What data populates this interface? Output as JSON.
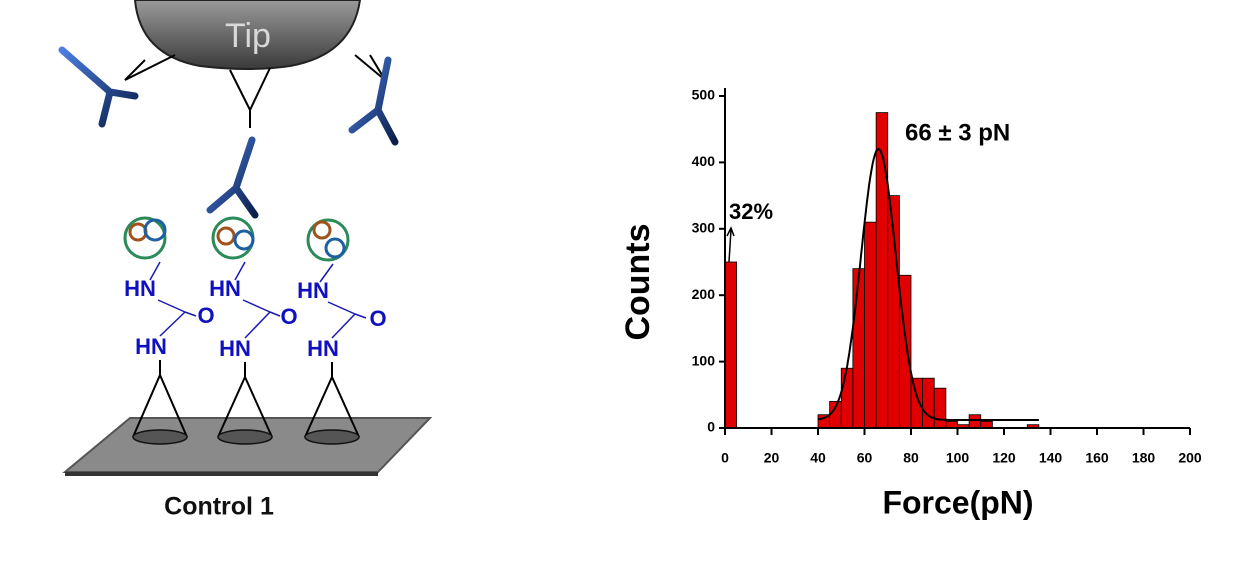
{
  "diagram": {
    "tip": "Tip",
    "caption": "Control 1",
    "molecules": [
      {
        "nh_top": "HN",
        "oxygen": "O",
        "nh_bottom": "HN"
      },
      {
        "nh_top": "HN",
        "oxygen": "O",
        "nh_bottom": "HN"
      },
      {
        "nh_top": "HN",
        "oxygen": "O",
        "nh_bottom": "HN"
      }
    ]
  },
  "chart_data": {
    "type": "histogram",
    "xlabel": "Force(pN)",
    "ylabel": "Counts",
    "bins": [
      0,
      5,
      10,
      15,
      20,
      25,
      30,
      35,
      40,
      45,
      50,
      55,
      60,
      65,
      70,
      75,
      80,
      85,
      90,
      95,
      100,
      105,
      110,
      115,
      120,
      125,
      130,
      135
    ],
    "values": [
      250,
      0,
      0,
      0,
      0,
      0,
      0,
      0,
      20,
      40,
      90,
      240,
      310,
      475,
      350,
      230,
      75,
      75,
      60,
      10,
      5,
      20,
      10,
      0,
      0,
      0,
      5
    ],
    "color": "#e00000",
    "fit": {
      "mean": 66,
      "sigma": 7.5,
      "peak": 420,
      "baseline": 12,
      "xrange": [
        40,
        135
      ]
    },
    "xlim": [
      0,
      200
    ],
    "xticks": [
      0,
      20,
      40,
      60,
      80,
      100,
      120,
      140,
      160,
      180,
      200
    ],
    "ylim": [
      0,
      500
    ],
    "yticks": [
      0,
      100,
      200,
      300,
      400,
      500
    ],
    "annotations": [
      {
        "text": "66 ±  3 pN"
      },
      {
        "text": "32%"
      }
    ]
  }
}
